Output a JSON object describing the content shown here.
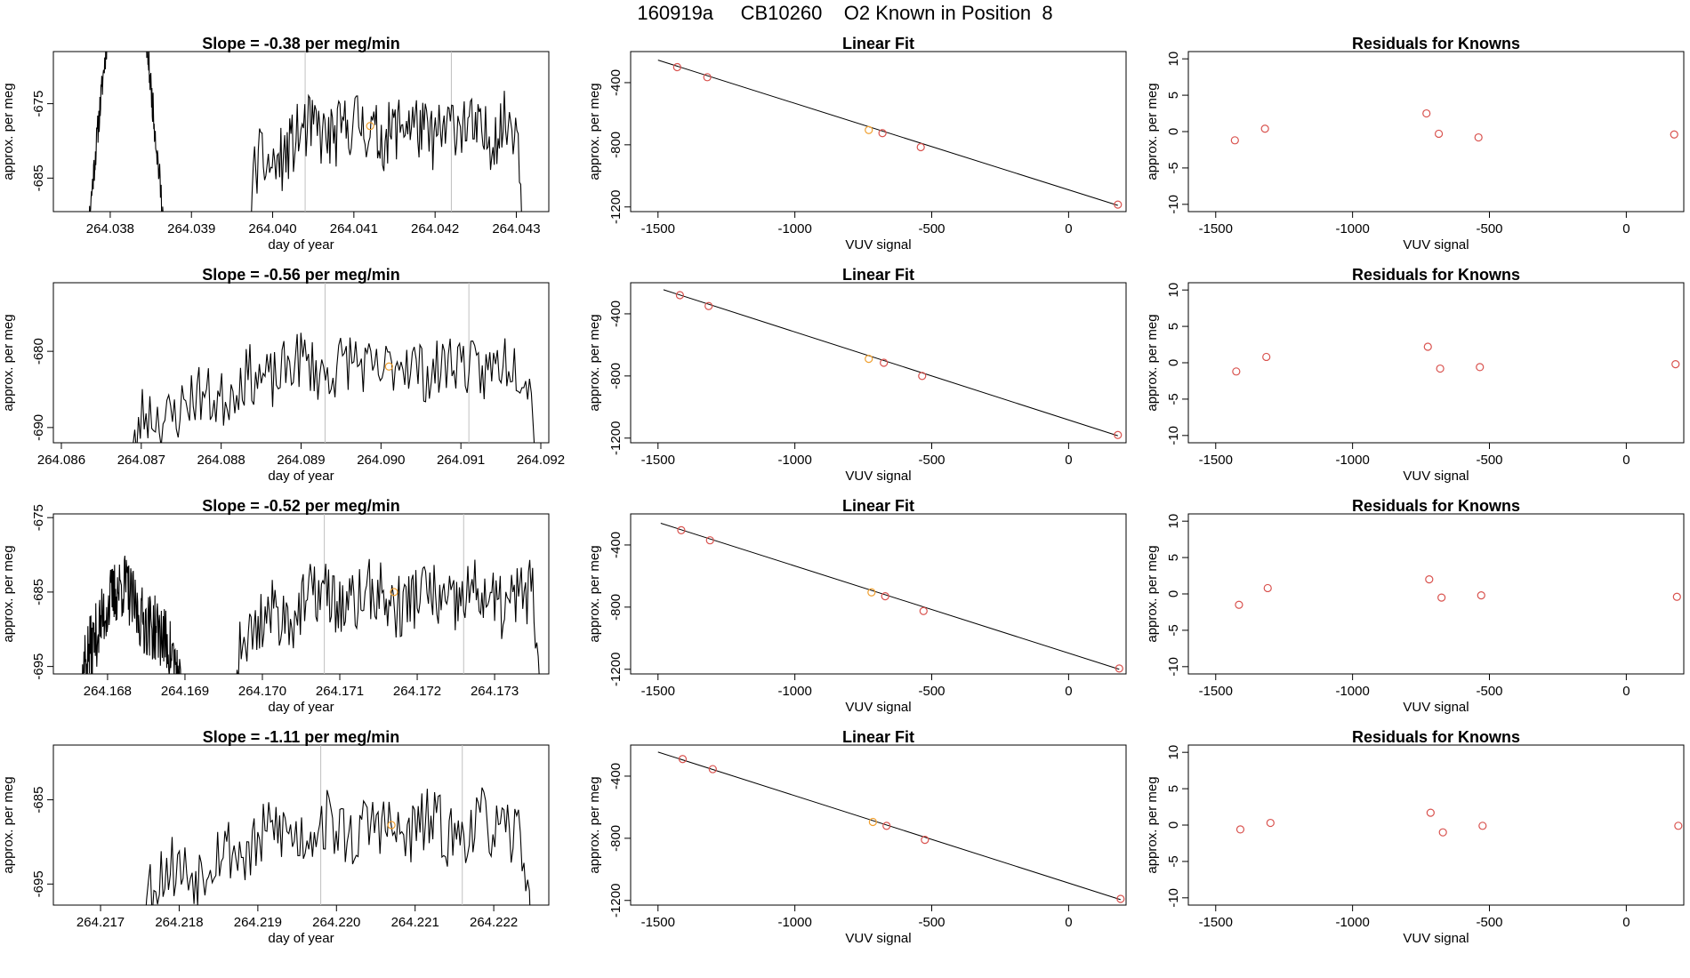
{
  "page": {
    "title": "160919a     CB10260    O2 Known in Position  8"
  },
  "colors": {
    "line": "#000000",
    "known_point": "#d9534f",
    "highlight_point": "#f0a030",
    "ref_line": "#c0c0c0",
    "axis": "#000000"
  },
  "chart_data": [
    {
      "type": "line",
      "row": 0,
      "col": 0,
      "title": "Slope =  -0.38  per meg/min",
      "xlabel": "day of year",
      "ylabel": "approx. per meg",
      "xlim": [
        264.0373,
        264.0434
      ],
      "ylim": [
        -689.5,
        -668
      ],
      "xticks": [
        264.038,
        264.039,
        264.04,
        264.041,
        264.042,
        264.043
      ],
      "xticklabels": [
        "264.038",
        "264.039",
        "264.040",
        "264.041",
        "264.042",
        "264.043"
      ],
      "yticks": [
        -675,
        -685
      ],
      "yticklabels": [
        "-675",
        "-685"
      ],
      "vlines": [
        264.0404,
        264.0422
      ],
      "highlight": {
        "x": 264.0412,
        "y": -678
      },
      "seed": 11,
      "ybase": -678.5,
      "yamp": 4.5,
      "segments": [
        [
          264.0377,
          264.0387,
          1
        ],
        [
          264.0397,
          264.0431,
          0
        ]
      ]
    },
    {
      "type": "line",
      "row": 1,
      "col": 0,
      "title": "Slope =  -0.56  per meg/min",
      "xlabel": "day of year",
      "ylabel": "approx. per meg",
      "xlim": [
        264.0859,
        264.0921
      ],
      "ylim": [
        -692,
        -671
      ],
      "xticks": [
        264.086,
        264.087,
        264.088,
        264.089,
        264.09,
        264.091,
        264.092
      ],
      "xticklabels": [
        "264.086",
        "264.087",
        "264.088",
        "264.089",
        "264.090",
        "264.091",
        "264.092"
      ],
      "yticks": [
        -680,
        -690
      ],
      "yticklabels": [
        "-680",
        "-690"
      ],
      "vlines": [
        264.0893,
        264.0911
      ],
      "highlight": {
        "x": 264.0901,
        "y": -682
      },
      "seed": 23,
      "ybase": -682,
      "yamp": 4,
      "segments": [
        [
          264.0868,
          264.092,
          2
        ]
      ]
    },
    {
      "type": "line",
      "row": 2,
      "col": 0,
      "title": "Slope =  -0.52  per meg/min",
      "xlabel": "day of year",
      "ylabel": "approx. per meg",
      "xlim": [
        264.1673,
        264.1737
      ],
      "ylim": [
        -696,
        -674.5
      ],
      "xticks": [
        264.168,
        264.169,
        264.17,
        264.171,
        264.172,
        264.173
      ],
      "xticklabels": [
        "264.168",
        "264.169",
        "264.170",
        "264.171",
        "264.172",
        "264.173"
      ],
      "yticks": [
        -675,
        -685,
        -695
      ],
      "yticklabels": [
        "-675",
        "-685",
        "-695"
      ],
      "vlines": [
        264.1708,
        264.1726
      ],
      "highlight": {
        "x": 264.1717,
        "y": -685
      },
      "seed": 37,
      "ybase": -686,
      "yamp": 4.5,
      "segments": [
        [
          264.1676,
          264.169,
          3
        ],
        [
          264.1696,
          264.1736,
          0
        ]
      ]
    },
    {
      "type": "line",
      "row": 3,
      "col": 0,
      "title": "Slope =  -1.11  per meg/min",
      "xlabel": "day of year",
      "ylabel": "approx. per meg",
      "xlim": [
        264.2164,
        264.2227
      ],
      "ylim": [
        -697.5,
        -678.5
      ],
      "xticks": [
        264.217,
        264.218,
        264.219,
        264.22,
        264.221,
        264.222
      ],
      "xticklabels": [
        "264.217",
        "264.218",
        "264.219",
        "264.220",
        "264.221",
        "264.222"
      ],
      "yticks": [
        -685,
        -695
      ],
      "yticklabels": [
        "-685",
        "-695"
      ],
      "vlines": [
        264.2198,
        264.2216
      ],
      "highlight": {
        "x": 264.2207,
        "y": -688
      },
      "seed": 53,
      "ybase": -688.5,
      "yamp": 4,
      "segments": [
        [
          264.2174,
          264.2225,
          2
        ]
      ]
    },
    {
      "type": "scatter",
      "row": 0,
      "col": 1,
      "title": "Linear Fit",
      "xlabel": "VUV signal",
      "ylabel": "approx. per meg",
      "xlim": [
        -1600,
        210
      ],
      "ylim": [
        -1230,
        -200
      ],
      "xticks": [
        -1500,
        -1000,
        -500,
        0
      ],
      "xticklabels": [
        "-1500",
        "-1000",
        "-500",
        "0"
      ],
      "yticks": [
        -400,
        -800,
        -1200
      ],
      "yticklabels": [
        "-400",
        "-800",
        "-1200"
      ],
      "x": [
        -1430,
        -1320,
        -730,
        -680,
        -540,
        180
      ],
      "y": [
        -300,
        -365,
        -705,
        -725,
        -815,
        -1185
      ],
      "highlight_index": 2,
      "fit": {
        "x": [
          -1500,
          180
        ],
        "y": [
          -255,
          -1190
        ]
      }
    },
    {
      "type": "scatter",
      "row": 1,
      "col": 1,
      "title": "Linear Fit",
      "xlabel": "VUV signal",
      "ylabel": "approx. per meg",
      "xlim": [
        -1600,
        210
      ],
      "ylim": [
        -1230,
        -200
      ],
      "xticks": [
        -1500,
        -1000,
        -500,
        0
      ],
      "xticklabels": [
        "-1500",
        "-1000",
        "-500",
        "0"
      ],
      "yticks": [
        -400,
        -800,
        -1200
      ],
      "yticklabels": [
        "-400",
        "-800",
        "-1200"
      ],
      "x": [
        -1420,
        -1315,
        -730,
        -675,
        -535,
        180
      ],
      "y": [
        -280,
        -350,
        -690,
        -715,
        -800,
        -1180
      ],
      "highlight_index": 2,
      "fit": {
        "x": [
          -1480,
          180
        ],
        "y": [
          -245,
          -1185
        ]
      }
    },
    {
      "type": "scatter",
      "row": 2,
      "col": 1,
      "title": "Linear Fit",
      "xlabel": "VUV signal",
      "ylabel": "approx. per meg",
      "xlim": [
        -1600,
        210
      ],
      "ylim": [
        -1230,
        -200
      ],
      "xticks": [
        -1500,
        -1000,
        -500,
        0
      ],
      "xticklabels": [
        "-1500",
        "-1000",
        "-500",
        "0"
      ],
      "yticks": [
        -400,
        -800,
        -1200
      ],
      "yticklabels": [
        "-400",
        "-800",
        "-1200"
      ],
      "x": [
        -1415,
        -1310,
        -720,
        -670,
        -530,
        185
      ],
      "y": [
        -305,
        -370,
        -705,
        -730,
        -825,
        -1195
      ],
      "highlight_index": 2,
      "fit": {
        "x": [
          -1490,
          185
        ],
        "y": [
          -260,
          -1200
        ]
      }
    },
    {
      "type": "scatter",
      "row": 3,
      "col": 1,
      "title": "Linear Fit",
      "xlabel": "VUV signal",
      "ylabel": "approx. per meg",
      "xlim": [
        -1600,
        210
      ],
      "ylim": [
        -1230,
        -200
      ],
      "xticks": [
        -1500,
        -1000,
        -500,
        0
      ],
      "xticklabels": [
        "-1500",
        "-1000",
        "-500",
        "0"
      ],
      "yticks": [
        -400,
        -800,
        -1200
      ],
      "yticklabels": [
        "-400",
        "-800",
        "-1200"
      ],
      "x": [
        -1410,
        -1300,
        -715,
        -665,
        -525,
        190
      ],
      "y": [
        -290,
        -355,
        -695,
        -720,
        -810,
        -1190
      ],
      "highlight_index": 2,
      "fit": {
        "x": [
          -1500,
          190
        ],
        "y": [
          -245,
          -1195
        ]
      }
    },
    {
      "type": "scatter",
      "row": 0,
      "col": 2,
      "title": "Residuals for Knowns",
      "xlabel": "VUV signal",
      "ylabel": "approx. per meg",
      "xlim": [
        -1600,
        210
      ],
      "ylim": [
        -11,
        11
      ],
      "xticks": [
        -1500,
        -1000,
        -500,
        0
      ],
      "xticklabels": [
        "-1500",
        "-1000",
        "-500",
        "0"
      ],
      "yticks": [
        10,
        5,
        0,
        -5,
        -10
      ],
      "yticklabels": [
        "10",
        "5",
        "0",
        "-5",
        "-10"
      ],
      "x": [
        -1430,
        -1320,
        -730,
        -685,
        -540,
        175
      ],
      "y": [
        -1.2,
        0.4,
        2.5,
        -0.3,
        -0.8,
        -0.4
      ]
    },
    {
      "type": "scatter",
      "row": 1,
      "col": 2,
      "title": "Residuals for Knowns",
      "xlabel": "VUV signal",
      "ylabel": "approx. per meg",
      "xlim": [
        -1600,
        210
      ],
      "ylim": [
        -11,
        11
      ],
      "xticks": [
        -1500,
        -1000,
        -500,
        0
      ],
      "xticklabels": [
        "-1500",
        "-1000",
        "-500",
        "0"
      ],
      "yticks": [
        10,
        5,
        0,
        -5,
        -10
      ],
      "yticklabels": [
        "10",
        "5",
        "0",
        "-5",
        "-10"
      ],
      "x": [
        -1425,
        -1315,
        -725,
        -680,
        -535,
        180
      ],
      "y": [
        -1.2,
        0.8,
        2.2,
        -0.8,
        -0.6,
        -0.2
      ]
    },
    {
      "type": "scatter",
      "row": 2,
      "col": 2,
      "title": "Residuals for Knowns",
      "xlabel": "VUV signal",
      "ylabel": "approx. per meg",
      "xlim": [
        -1600,
        210
      ],
      "ylim": [
        -11,
        11
      ],
      "xticks": [
        -1500,
        -1000,
        -500,
        0
      ],
      "xticklabels": [
        "-1500",
        "-1000",
        "-500",
        "0"
      ],
      "yticks": [
        10,
        5,
        0,
        -5,
        -10
      ],
      "yticklabels": [
        "10",
        "5",
        "0",
        "-5",
        "-10"
      ],
      "x": [
        -1415,
        -1310,
        -720,
        -675,
        -530,
        185
      ],
      "y": [
        -1.5,
        0.8,
        2.0,
        -0.5,
        -0.2,
        -0.4
      ]
    },
    {
      "type": "scatter",
      "row": 3,
      "col": 2,
      "title": "Residuals for Knowns",
      "xlabel": "VUV signal",
      "ylabel": "approx. per meg",
      "xlim": [
        -1600,
        210
      ],
      "ylim": [
        -11,
        11
      ],
      "xticks": [
        -1500,
        -1000,
        -500,
        0
      ],
      "xticklabels": [
        "-1500",
        "-1000",
        "-500",
        "0"
      ],
      "yticks": [
        10,
        5,
        0,
        -5,
        -10
      ],
      "yticklabels": [
        "10",
        "5",
        "0",
        "-5",
        "-10"
      ],
      "x": [
        -1410,
        -1300,
        -715,
        -670,
        -525,
        190
      ],
      "y": [
        -0.6,
        0.3,
        1.7,
        -1.0,
        -0.1,
        -0.1
      ]
    }
  ]
}
